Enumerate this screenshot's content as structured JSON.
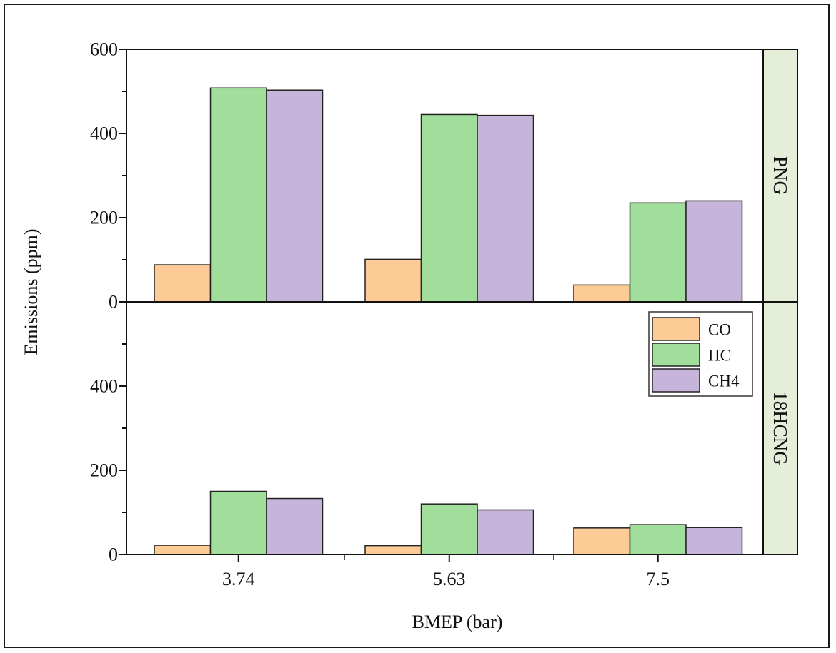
{
  "chart_data": {
    "type": "bar",
    "xlabel": "BMEP (bar)",
    "ylabel": "Emissions (ppm)",
    "categories": [
      "3.74",
      "5.63",
      "7.5"
    ],
    "ylim": [
      0,
      600
    ],
    "yticks": [
      "0",
      "200",
      "400",
      "600"
    ],
    "legend_position": "top-right of lower panel",
    "colors": {
      "CO": "#fccb96",
      "HC": "#a1dd9b",
      "CH4": "#c6b4da",
      "facet_strip": "#e5eed8"
    },
    "panels": [
      {
        "label": "PNG",
        "series": [
          {
            "name": "CO",
            "values": [
              88,
              101,
              40
            ]
          },
          {
            "name": "HC",
            "values": [
              508,
              445,
              235
            ]
          },
          {
            "name": "CH4",
            "values": [
              503,
              443,
              240
            ]
          }
        ]
      },
      {
        "label": "18HCNG",
        "series": [
          {
            "name": "CO",
            "values": [
              22,
              21,
              63
            ]
          },
          {
            "name": "HC",
            "values": [
              150,
              120,
              71
            ]
          },
          {
            "name": "CH4",
            "values": [
              133,
              106,
              64
            ]
          }
        ]
      }
    ],
    "legend": [
      "CO",
      "HC",
      "CH4"
    ]
  }
}
